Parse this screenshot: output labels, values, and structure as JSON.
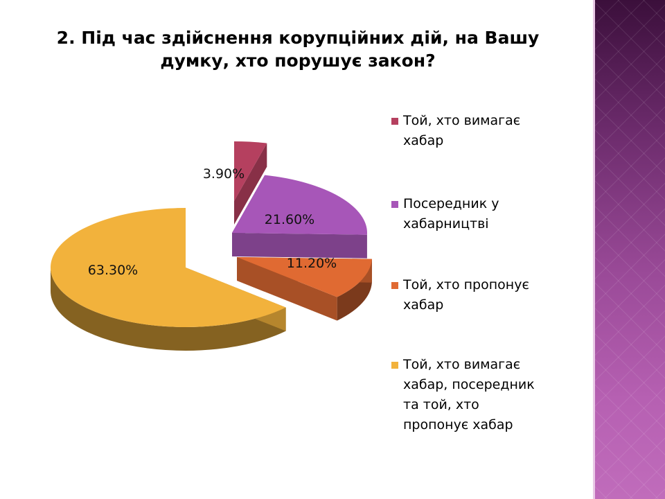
{
  "title": "2. Під час здійснення корупційних дій, на Вашу думку, хто порушує закон?",
  "chart_data": {
    "type": "pie",
    "title": "2. Під час здійснення корупційних дій, на Вашу думку, хто порушує закон?",
    "legend_position": "right",
    "slices": [
      {
        "name": "Той, хто вимагає хабар",
        "value": 3.9,
        "label": "3.90%",
        "color": "#b5405f",
        "exploded": true
      },
      {
        "name": "Посередник у хабарництві",
        "value": 21.6,
        "label": "21.60%",
        "color": "#a756b8",
        "exploded": true
      },
      {
        "name": "Той, хто пропонує хабар",
        "value": 11.2,
        "label": "11.20%",
        "color": "#e06a32",
        "exploded": true
      },
      {
        "name": "Той, хто вимагає хабар, посередник та той, хто пропонує хабар",
        "value": 63.3,
        "label": "63.30%",
        "color": "#f2b23c",
        "exploded": true
      }
    ]
  },
  "legend": [
    {
      "lines": [
        "Той, хто вимагає",
        "хабар"
      ],
      "color": "#b5405f"
    },
    {
      "lines": [
        "Посередник у",
        "хабарництві"
      ],
      "color": "#a756b8"
    },
    {
      "lines": [
        "Той, хто пропонує",
        "хабар"
      ],
      "color": "#e06a32"
    },
    {
      "lines": [
        "Той, хто вимагає",
        "хабар, посередник",
        "та той, хто",
        "пропонує хабар"
      ],
      "color": "#f2b23c"
    }
  ]
}
